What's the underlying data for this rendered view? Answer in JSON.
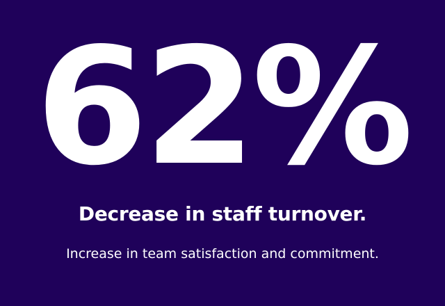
{
  "card": {
    "background_color": "#1f015a",
    "text_color": "#ffffff",
    "stat_value": "62%",
    "headline": "Decrease in staff turnover.",
    "subline": "Increase in team satisfaction and commitment."
  }
}
